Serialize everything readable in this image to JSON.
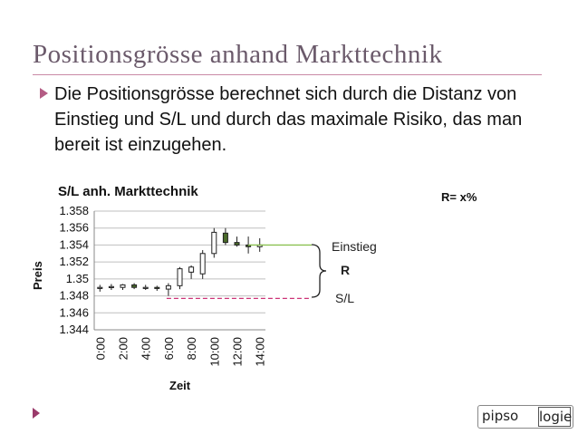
{
  "slide": {
    "title": "Positionsgrösse anhand Markttechnik",
    "bullet": "Die Positionsgrösse berechnet sich durch die Distanz von Einstieg und S/L und durch das maximale Risiko, das man bereit ist einzugehen.",
    "logo_left": "pipso",
    "logo_right": "logie",
    "accent_color": "#b45c84"
  },
  "chart_data": {
    "type": "candlestick",
    "title": "S/L anh. Markttechnik",
    "xlabel": "Zeit",
    "ylabel": "Preis",
    "ylim": [
      1.344,
      1.358
    ],
    "yticks": [
      "1.358",
      "1.356",
      "1.354",
      "1.352",
      "1.35",
      "1.348",
      "1.346",
      "1.344"
    ],
    "xticks": [
      "0:00",
      "2:00",
      "4:00",
      "6:00",
      "8:00",
      "10:00",
      "12:00",
      "14:00"
    ],
    "candles": [
      {
        "t": "0:00",
        "o": 1.349,
        "h": 1.3493,
        "l": 1.3485,
        "c": 1.349
      },
      {
        "t": "1:00",
        "o": 1.349,
        "h": 1.3494,
        "l": 1.3487,
        "c": 1.3491
      },
      {
        "t": "2:00",
        "o": 1.349,
        "h": 1.3494,
        "l": 1.3487,
        "c": 1.3493
      },
      {
        "t": "3:00",
        "o": 1.3493,
        "h": 1.3495,
        "l": 1.3488,
        "c": 1.349
      },
      {
        "t": "4:00",
        "o": 1.349,
        "h": 1.3493,
        "l": 1.3487,
        "c": 1.349
      },
      {
        "t": "5:00",
        "o": 1.349,
        "h": 1.3492,
        "l": 1.3486,
        "c": 1.3489
      },
      {
        "t": "6:00",
        "o": 1.3488,
        "h": 1.3495,
        "l": 1.348,
        "c": 1.3492
      },
      {
        "t": "7:00",
        "o": 1.3492,
        "h": 1.3514,
        "l": 1.3488,
        "c": 1.3512
      },
      {
        "t": "8:00",
        "o": 1.3508,
        "h": 1.3516,
        "l": 1.35,
        "c": 1.3514
      },
      {
        "t": "9:00",
        "o": 1.3506,
        "h": 1.3534,
        "l": 1.35,
        "c": 1.353
      },
      {
        "t": "10:00",
        "o": 1.353,
        "h": 1.356,
        "l": 1.3525,
        "c": 1.3555
      },
      {
        "t": "11:00",
        "o": 1.3554,
        "h": 1.356,
        "l": 1.354,
        "c": 1.3543
      },
      {
        "t": "12:00",
        "o": 1.3543,
        "h": 1.355,
        "l": 1.3538,
        "c": 1.354
      },
      {
        "t": "13:00",
        "o": 1.354,
        "h": 1.355,
        "l": 1.353,
        "c": 1.3538
      },
      {
        "t": "14:00",
        "o": 1.3538,
        "h": 1.3548,
        "l": 1.3532,
        "c": 1.354
      }
    ],
    "entry": {
      "label": "Einstieg",
      "value": 1.354,
      "color": "#8cc152"
    },
    "stop_loss": {
      "label": "S/L",
      "value": 1.3477,
      "color": "#cc3377"
    },
    "risk_label": "R",
    "risk_note": "R= x%"
  }
}
